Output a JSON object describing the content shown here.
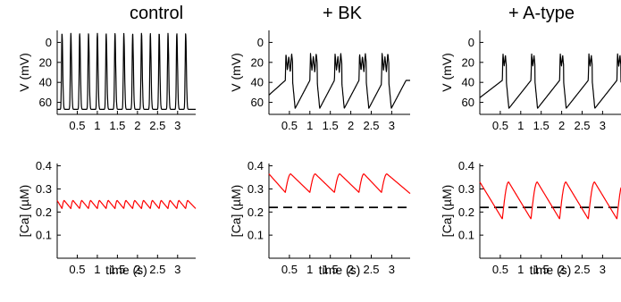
{
  "columns": [
    {
      "title": "control"
    },
    {
      "title": "+ BK"
    },
    {
      "title": "+ A-type"
    }
  ],
  "colors": {
    "voltage": "#000000",
    "calcium": "#ff0000",
    "reference": "#000000"
  },
  "chart_data": [
    {
      "type": "line",
      "column": "control",
      "row": "voltage",
      "ylabel": "V (mV)",
      "xlabel": "",
      "xlim": [
        0,
        3.45
      ],
      "ylim": [
        -72,
        12
      ],
      "y_inverted": true,
      "yticks": [
        0,
        20,
        40,
        60
      ],
      "xticks": [
        0.5,
        1,
        1.5,
        2,
        2.5,
        3
      ],
      "xtick_labels": [
        "0.5",
        "1",
        "1.5",
        "2",
        "2.5",
        "3"
      ],
      "spike_times": [
        0.12,
        0.34,
        0.56,
        0.78,
        1.0,
        1.22,
        1.44,
        1.66,
        1.88,
        2.1,
        2.32,
        2.54,
        2.76,
        2.98,
        3.2
      ],
      "spike_peak_mV": 9,
      "trough_mV": -67,
      "series": [
        {
          "color": "#000000"
        }
      ]
    },
    {
      "type": "line",
      "column": "+ BK",
      "row": "voltage",
      "ylabel": "V (mV)",
      "xlabel": "",
      "xlim": [
        0,
        3.45
      ],
      "ylim": [
        -72,
        12
      ],
      "y_inverted": true,
      "yticks": [
        0,
        20,
        40,
        60
      ],
      "xticks": [
        0.5,
        1,
        1.5,
        2,
        2.5,
        3
      ],
      "xtick_labels": [
        "0.5",
        "1",
        "1.5",
        "2",
        "2.5",
        "3"
      ],
      "burst_times": [
        0.4,
        1.0,
        1.6,
        2.2,
        2.75
      ],
      "burst_peaks_mV": [
        -11,
        -14,
        -11
      ],
      "burst_dips_mV": [
        -28,
        -30
      ],
      "trough_mV": -66,
      "series": [
        {
          "color": "#000000"
        }
      ]
    },
    {
      "type": "line",
      "column": "+ A-type",
      "row": "voltage",
      "ylabel": "V (mV)",
      "xlabel": "",
      "xlim": [
        0,
        3.45
      ],
      "ylim": [
        -72,
        12
      ],
      "y_inverted": true,
      "yticks": [
        0,
        20,
        40,
        60
      ],
      "xticks": [
        0.5,
        1,
        1.5,
        2,
        2.5,
        3
      ],
      "xtick_labels": [
        "0.5",
        "1",
        "1.5",
        "2",
        "2.5",
        "3"
      ],
      "burst_times": [
        0.55,
        1.25,
        1.95,
        2.65,
        3.35
      ],
      "burst_peaks_mV": [
        -11,
        -13
      ],
      "burst_dips_mV": [
        -24
      ],
      "trough_mV": -66,
      "series": [
        {
          "color": "#000000"
        }
      ]
    },
    {
      "type": "line",
      "column": "control",
      "row": "calcium",
      "ylabel": "[Ca] (µM)",
      "xlabel": "time (s)",
      "xlim": [
        0,
        3.45
      ],
      "ylim": [
        0,
        0.41
      ],
      "yticks": [
        0.1,
        0.2,
        0.3,
        0.4
      ],
      "ytick_labels": [
        "0.1",
        "0.2",
        "0.3",
        "0.4"
      ],
      "xticks": [
        0.5,
        1,
        1.5,
        2,
        2.5,
        3
      ],
      "xtick_labels": [
        "0.5",
        "1",
        "1.5",
        "2",
        "2.5",
        "3"
      ],
      "spike_times": [
        0.12,
        0.34,
        0.56,
        0.78,
        1.0,
        1.22,
        1.44,
        1.66,
        1.88,
        2.1,
        2.32,
        2.54,
        2.76,
        2.98,
        3.2
      ],
      "ca_peak": 0.25,
      "ca_trough": 0.215,
      "ca_start": 0.25,
      "ca_end": 0.215,
      "reference_level": null,
      "series": [
        {
          "color": "#ff0000"
        }
      ]
    },
    {
      "type": "line",
      "column": "+ BK",
      "row": "calcium",
      "ylabel": "[Ca] (µM)",
      "xlabel": "time (s)",
      "xlim": [
        0,
        3.45
      ],
      "ylim": [
        0,
        0.41
      ],
      "yticks": [
        0.1,
        0.2,
        0.3,
        0.4
      ],
      "ytick_labels": [
        "0.1",
        "0.2",
        "0.3",
        "0.4"
      ],
      "xticks": [
        0.5,
        1,
        1.5,
        2,
        2.5,
        3
      ],
      "xtick_labels": [
        "0.5",
        "1",
        "1.5",
        "2",
        "2.5",
        "3"
      ],
      "burst_times": [
        0.4,
        1.0,
        1.6,
        2.2,
        2.75
      ],
      "ca_peak": 0.365,
      "ca_trough": 0.285,
      "ca_start": 0.365,
      "ca_end": 0.28,
      "reference_level": 0.22,
      "series": [
        {
          "color": "#ff0000"
        }
      ]
    },
    {
      "type": "line",
      "column": "+ A-type",
      "row": "calcium",
      "ylabel": "[Ca] (µM)",
      "xlabel": "time (s)",
      "xlim": [
        0,
        3.45
      ],
      "ylim": [
        0,
        0.41
      ],
      "yticks": [
        0.1,
        0.2,
        0.3,
        0.4
      ],
      "ytick_labels": [
        "0.1",
        "0.2",
        "0.3",
        "0.4"
      ],
      "xticks": [
        0.5,
        1,
        1.5,
        2,
        2.5,
        3
      ],
      "xtick_labels": [
        "0.5",
        "1",
        "1.5",
        "2",
        "2.5",
        "3"
      ],
      "burst_times": [
        0.55,
        1.25,
        1.95,
        2.65,
        3.35
      ],
      "ca_peak": 0.33,
      "ca_trough": 0.17,
      "ca_start": 0.33,
      "ca_end": 0.28,
      "reference_level": 0.22,
      "series": [
        {
          "color": "#ff0000"
        }
      ]
    }
  ]
}
